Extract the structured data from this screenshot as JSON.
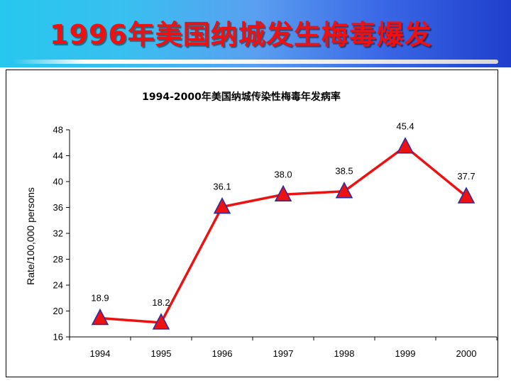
{
  "slide": {
    "title": "1996年美国纳城发生梅毒爆发"
  },
  "colors": {
    "header_start": "#27c7ee",
    "header_end": "#1f3fcc",
    "title": "#ee1111",
    "series_line": "#ee1111",
    "marker_fill": "#ee1111",
    "marker_stroke": "#2a2aa0"
  },
  "chart_data": {
    "type": "line",
    "title": "1994-2000年美国纳城传染性梅毒年发病率",
    "xlabel": "",
    "ylabel": "Rate/100,000 persons",
    "categories": [
      "1994",
      "1995",
      "1996",
      "1997",
      "1998",
      "1999",
      "2000"
    ],
    "series": [
      {
        "values": [
          18.9,
          18.2,
          36.1,
          38.0,
          38.5,
          45.4,
          37.7
        ]
      }
    ],
    "data_labels": [
      "18.9",
      "18.2",
      "36.1",
      "38.0",
      "38.5",
      "45.4",
      "37.7"
    ],
    "ylim": [
      16,
      48
    ],
    "yticks": [
      "16",
      "20",
      "24",
      "28",
      "32",
      "36",
      "40",
      "44",
      "48"
    ],
    "marker": "triangle",
    "grid": false,
    "legend": "none"
  }
}
